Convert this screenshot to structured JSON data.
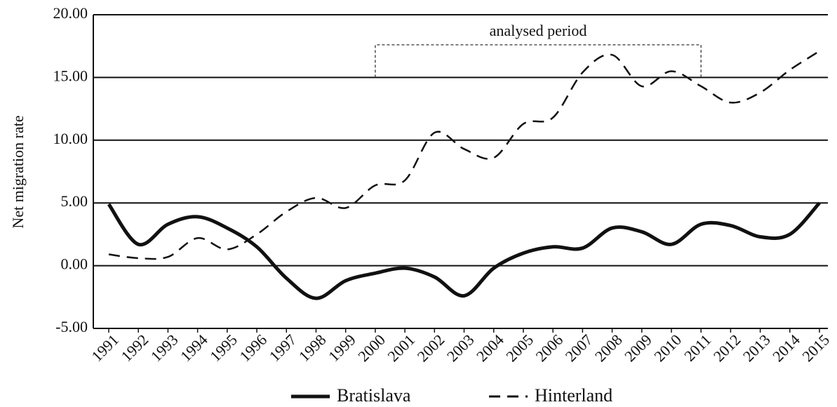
{
  "chart_data": {
    "type": "line",
    "y_label": "Net migration rate",
    "categories": [
      "1991",
      "1992",
      "1993",
      "1994",
      "1995",
      "1996",
      "1997",
      "1998",
      "1999",
      "2000",
      "2001",
      "2002",
      "2003",
      "2004",
      "2005",
      "2006",
      "2007",
      "2008",
      "2009",
      "2010",
      "2011",
      "2012",
      "2013",
      "2014",
      "2015"
    ],
    "series": [
      {
        "name": "Bratislava",
        "color": "#111111",
        "dash": "solid",
        "values": [
          4.9,
          1.7,
          3.3,
          3.9,
          3.0,
          1.5,
          -1.0,
          -2.6,
          -1.2,
          -0.6,
          -0.2,
          -0.9,
          -2.4,
          -0.2,
          1.0,
          1.5,
          1.4,
          3.0,
          2.7,
          1.7,
          3.3,
          3.2,
          2.3,
          2.5,
          5.0
        ]
      },
      {
        "name": "Hinterland",
        "color": "#111111",
        "dash": "dashed",
        "values": [
          0.9,
          0.6,
          0.7,
          2.2,
          1.3,
          2.5,
          4.3,
          5.4,
          4.6,
          6.4,
          6.8,
          10.6,
          9.3,
          8.6,
          11.3,
          11.8,
          15.4,
          16.8,
          14.3,
          15.5,
          14.3,
          13.0,
          13.8,
          15.6,
          17.1
        ]
      }
    ],
    "ylim": [
      -5,
      20
    ],
    "yticks": [
      {
        "value": -5,
        "label": "-5.00"
      },
      {
        "value": 0,
        "label": "0.00"
      },
      {
        "value": 5,
        "label": "5.00"
      },
      {
        "value": 10,
        "label": "10.00"
      },
      {
        "value": 15,
        "label": "15.00"
      },
      {
        "value": 20,
        "label": "20.00"
      }
    ],
    "grid": true,
    "legend": "bottom",
    "annotation": {
      "text": "analysed period",
      "start": "2000",
      "end": "2011",
      "level": 17.6,
      "base": 15
    }
  }
}
